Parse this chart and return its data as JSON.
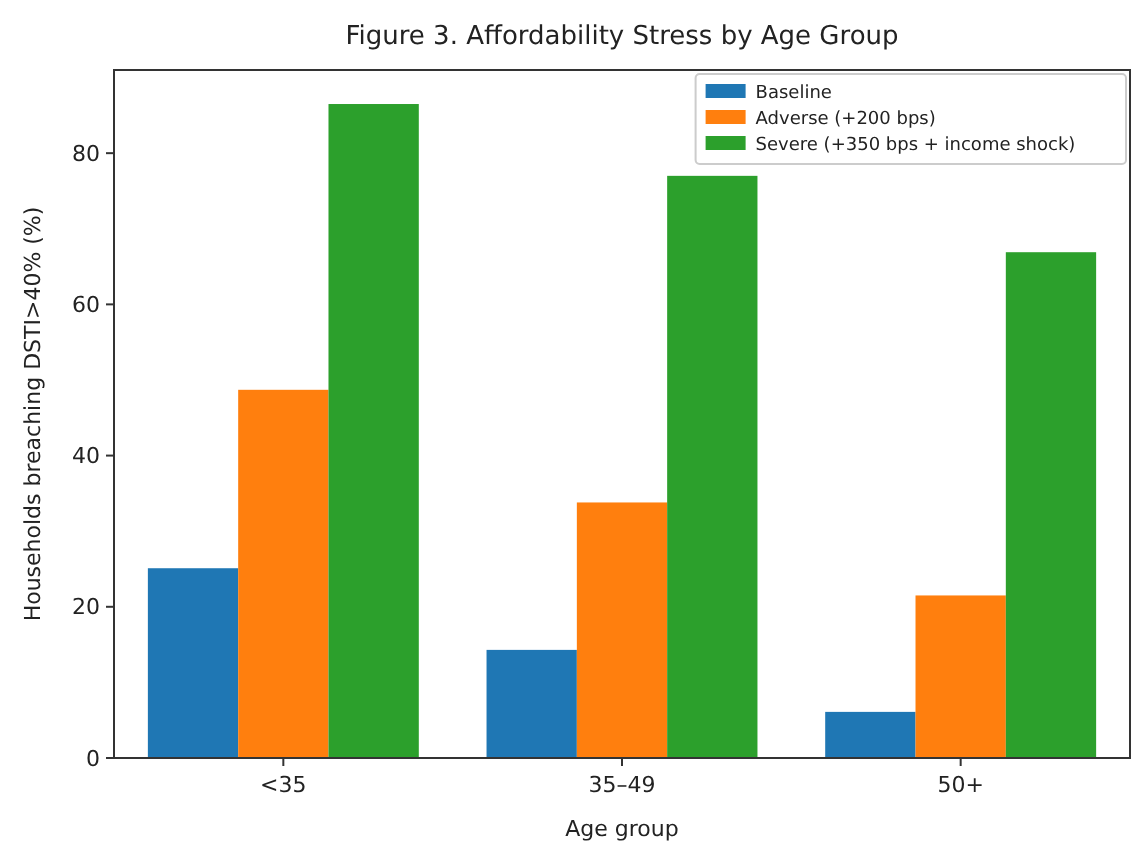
{
  "chart_data": {
    "type": "bar",
    "title": "Figure 3. Affordability Stress by Age Group",
    "xlabel": "Age group",
    "ylabel": "Households breaching DSTI>40% (%)",
    "categories": [
      "<35",
      "35–49",
      "50+"
    ],
    "series": [
      {
        "name": "Baseline",
        "color": "#1f77b4",
        "values": [
          25.1,
          14.3,
          6.1
        ]
      },
      {
        "name": "Adverse (+200 bps)",
        "color": "#ff7f0e",
        "values": [
          48.7,
          33.8,
          21.5
        ]
      },
      {
        "name": "Severe (+350 bps + income shock)",
        "color": "#2ca02c",
        "values": [
          86.5,
          77,
          66.9
        ]
      }
    ],
    "ylim": [
      0,
      91
    ],
    "yticks": [
      0,
      20,
      40,
      60,
      80
    ],
    "legend": "top right"
  }
}
